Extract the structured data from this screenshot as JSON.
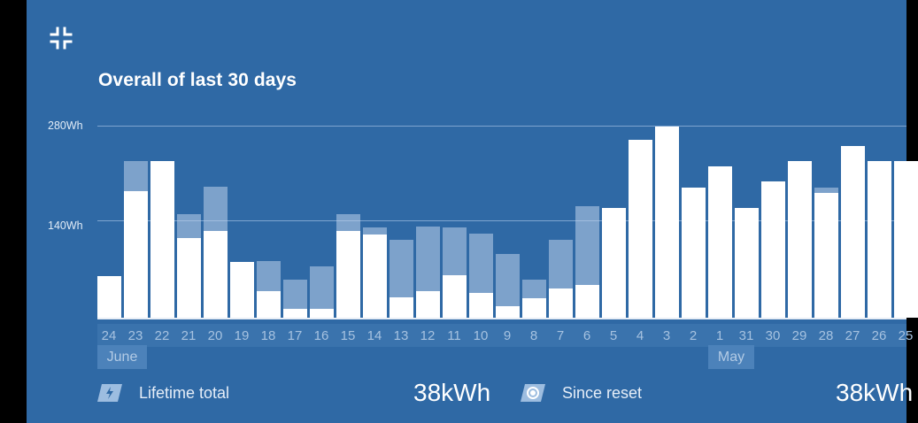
{
  "header": {
    "collapse_icon": "collapse-arrows-icon",
    "title": "Overall of last 30 days"
  },
  "colors": {
    "panel": "#2f69a5",
    "bar": "#ffffff",
    "bar_ghost": "#bed2eb",
    "axis_text": "#a6c2e0"
  },
  "chart_data": {
    "type": "bar",
    "title": "Overall of last 30 days",
    "y_tick_labels": [
      "280Wh",
      "140Wh"
    ],
    "y_ticks": [
      280,
      140
    ],
    "ylim": [
      0,
      280
    ],
    "unit": "Wh",
    "categories": [
      "24",
      "23",
      "22",
      "21",
      "20",
      "19",
      "18",
      "17",
      "16",
      "15",
      "14",
      "13",
      "12",
      "11",
      "10",
      "9",
      "8",
      "7",
      "6",
      "5",
      "4",
      "3",
      "2",
      "1",
      "31",
      "30",
      "29",
      "28",
      "27",
      "26",
      "25"
    ],
    "series": [
      {
        "values": [
          61,
          183,
          229,
          115,
          125,
          81,
          37,
          12,
          12,
          125,
          120,
          28,
          37,
          60,
          35,
          16,
          27,
          41,
          47,
          160,
          259,
          279,
          190,
          221,
          160,
          199,
          229,
          180,
          250,
          229,
          229
        ]
      },
      {
        "values": [
          61,
          229,
          229,
          151,
          191,
          81,
          82,
          55,
          75,
          151,
          131,
          113,
          133,
          131,
          123,
          93,
          55,
          113,
          162,
          160,
          259,
          279,
          190,
          221,
          160,
          199,
          229,
          190,
          250,
          229,
          229
        ]
      }
    ],
    "month_labels": [
      {
        "label": "June",
        "at": "23"
      },
      {
        "label": "May",
        "at": "31"
      }
    ],
    "grid": true,
    "legend": "none"
  },
  "stats": [
    {
      "icon": "lightning-icon",
      "label": "Lifetime total",
      "value": "38kWh"
    },
    {
      "icon": "record-icon",
      "label": "Since reset",
      "value": "38kWh"
    }
  ]
}
